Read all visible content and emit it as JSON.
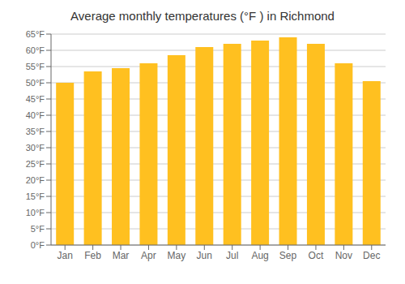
{
  "chart_data": {
    "type": "bar",
    "title": "Average monthly temperatures (°F ) in Richmond",
    "categories": [
      "Jan",
      "Feb",
      "Mar",
      "Apr",
      "May",
      "Jun",
      "Jul",
      "Aug",
      "Sep",
      "Oct",
      "Nov",
      "Dec"
    ],
    "values": [
      50,
      53.5,
      54.5,
      56,
      58.5,
      61,
      62,
      63,
      64,
      62,
      56,
      50.5
    ],
    "color": "#FFC020",
    "ylim": [
      0,
      65
    ],
    "yticks": [
      {
        "value": 0,
        "label": "0°F"
      },
      {
        "value": 5,
        "label": "5°F"
      },
      {
        "value": 10,
        "label": "10°F"
      },
      {
        "value": 15,
        "label": "15°F"
      },
      {
        "value": 20,
        "label": "20°F"
      },
      {
        "value": 25,
        "label": "25°F"
      },
      {
        "value": 30,
        "label": "30°F"
      },
      {
        "value": 35,
        "label": "35°F"
      },
      {
        "value": 40,
        "label": "40°F"
      },
      {
        "value": 45,
        "label": "45°F"
      },
      {
        "value": 50,
        "label": "50°F"
      },
      {
        "value": 55,
        "label": "55°F"
      },
      {
        "value": 60,
        "label": "60°F"
      },
      {
        "value": 65,
        "label": "65°F"
      }
    ],
    "grid": true
  }
}
